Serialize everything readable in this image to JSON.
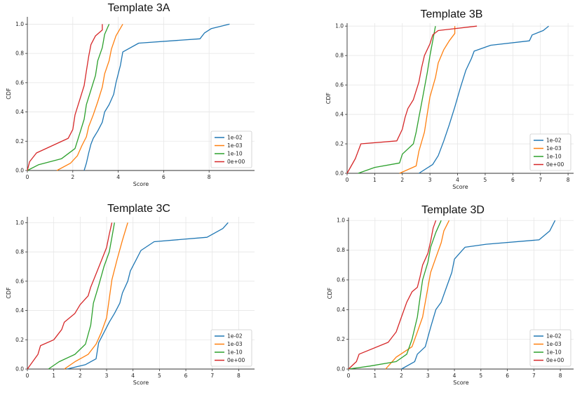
{
  "colors": {
    "s1e02": "#1f77b4",
    "s1e03": "#ff7f0e",
    "s1e10": "#2ca02c",
    "s0e00": "#d62728"
  },
  "chart_data": [
    {
      "type": "line",
      "title": "Template 3A",
      "xlabel": "Score",
      "ylabel": "CDF",
      "xlim": [
        0,
        10
      ],
      "ylim": [
        0,
        1.05
      ],
      "xticks": [
        0,
        2,
        4,
        6,
        8
      ],
      "yticks": [
        0.0,
        0.2,
        0.4,
        0.6,
        0.8,
        1.0
      ],
      "grid": true,
      "legend": "bottom-right",
      "series": [
        {
          "name": "1e-02",
          "color": "#1f77b4",
          "x": [
            2.5,
            2.6,
            2.7,
            2.8,
            2.9,
            3.1,
            3.3,
            3.4,
            3.6,
            3.8,
            3.9,
            4.1,
            4.2,
            4.9,
            7.6,
            7.8,
            8.1,
            8.9
          ],
          "y": [
            0.0,
            0.05,
            0.12,
            0.18,
            0.22,
            0.27,
            0.33,
            0.4,
            0.45,
            0.52,
            0.6,
            0.72,
            0.81,
            0.87,
            0.9,
            0.94,
            0.97,
            1.0
          ]
        },
        {
          "name": "1e-03",
          "color": "#ff7f0e",
          "x": [
            1.3,
            1.9,
            2.2,
            2.4,
            2.6,
            2.7,
            2.9,
            3.1,
            3.3,
            3.4,
            3.6,
            3.7,
            3.9,
            4.2
          ],
          "y": [
            0.0,
            0.05,
            0.1,
            0.17,
            0.23,
            0.3,
            0.38,
            0.47,
            0.57,
            0.66,
            0.75,
            0.83,
            0.92,
            1.0
          ]
        },
        {
          "name": "1e-10",
          "color": "#2ca02c",
          "x": [
            0.0,
            0.5,
            1.5,
            2.1,
            2.3,
            2.5,
            2.6,
            2.8,
            3.0,
            3.1,
            3.3,
            3.4,
            3.6
          ],
          "y": [
            0.0,
            0.04,
            0.08,
            0.15,
            0.25,
            0.35,
            0.45,
            0.55,
            0.65,
            0.75,
            0.84,
            0.93,
            1.0
          ]
        },
        {
          "name": "0e+00",
          "color": "#d62728",
          "x": [
            0.0,
            0.1,
            0.4,
            1.8,
            2.0,
            2.1,
            2.3,
            2.5,
            2.6,
            2.7,
            2.8,
            3.0,
            3.3,
            3.3
          ],
          "y": [
            0.0,
            0.06,
            0.12,
            0.22,
            0.28,
            0.38,
            0.48,
            0.58,
            0.68,
            0.78,
            0.86,
            0.92,
            0.96,
            1.0
          ]
        }
      ]
    },
    {
      "type": "line",
      "title": "Template 3B",
      "xlabel": "Score",
      "ylabel": "CDF",
      "xlim": [
        0,
        8.2
      ],
      "ylim": [
        0,
        1.02
      ],
      "xticks": [
        0,
        1,
        2,
        3,
        4,
        5,
        6,
        7,
        8
      ],
      "yticks": [
        0.0,
        0.2,
        0.4,
        0.6,
        0.8,
        1.0
      ],
      "grid": true,
      "legend": "bottom-right",
      "series": [
        {
          "name": "1e-02",
          "color": "#1f77b4",
          "x": [
            2.6,
            3.1,
            3.3,
            3.5,
            3.7,
            3.9,
            4.1,
            4.3,
            4.5,
            4.6,
            5.2,
            6.6,
            6.7,
            7.1,
            7.3
          ],
          "y": [
            0.0,
            0.06,
            0.12,
            0.22,
            0.33,
            0.45,
            0.58,
            0.7,
            0.78,
            0.83,
            0.87,
            0.9,
            0.94,
            0.97,
            1.0
          ]
        },
        {
          "name": "1e-03",
          "color": "#ff7f0e",
          "x": [
            1.9,
            2.5,
            2.6,
            2.8,
            2.9,
            3.0,
            3.2,
            3.3,
            3.5,
            3.7,
            3.9,
            3.9
          ],
          "y": [
            0.0,
            0.05,
            0.15,
            0.28,
            0.4,
            0.52,
            0.65,
            0.75,
            0.84,
            0.9,
            0.95,
            1.0
          ]
        },
        {
          "name": "1e-10",
          "color": "#2ca02c",
          "x": [
            0.4,
            1.0,
            1.9,
            2.0,
            2.4,
            2.5,
            2.6,
            2.7,
            2.8,
            2.9,
            3.0,
            3.1,
            3.2
          ],
          "y": [
            0.0,
            0.04,
            0.07,
            0.13,
            0.2,
            0.28,
            0.38,
            0.48,
            0.58,
            0.68,
            0.8,
            0.9,
            1.0
          ]
        },
        {
          "name": "0e+00",
          "color": "#d62728",
          "x": [
            0.0,
            0.3,
            0.5,
            1.8,
            2.0,
            2.1,
            2.2,
            2.4,
            2.6,
            2.7,
            2.8,
            3.0,
            3.1,
            3.3,
            4.7
          ],
          "y": [
            0.0,
            0.1,
            0.2,
            0.22,
            0.3,
            0.38,
            0.44,
            0.5,
            0.62,
            0.72,
            0.8,
            0.88,
            0.94,
            0.97,
            1.0
          ]
        }
      ]
    },
    {
      "type": "line",
      "title": "Template 3C",
      "xlabel": "Score",
      "ylabel": "CDF",
      "xlim": [
        0,
        8.6
      ],
      "ylim": [
        0,
        1.04
      ],
      "xticks": [
        0,
        1,
        2,
        3,
        4,
        5,
        6,
        7,
        8
      ],
      "yticks": [
        0.0,
        0.2,
        0.4,
        0.6,
        0.8,
        1.0
      ],
      "grid": true,
      "legend": "bottom-right",
      "series": [
        {
          "name": "1e-02",
          "color": "#1f77b4",
          "x": [
            1.5,
            2.2,
            2.6,
            2.7,
            2.9,
            3.1,
            3.3,
            3.5,
            3.6,
            3.8,
            3.9,
            4.1,
            4.3,
            4.8,
            6.8,
            7.4,
            7.6
          ],
          "y": [
            0.0,
            0.03,
            0.07,
            0.18,
            0.25,
            0.32,
            0.38,
            0.45,
            0.52,
            0.6,
            0.67,
            0.74,
            0.81,
            0.87,
            0.9,
            0.96,
            1.0
          ]
        },
        {
          "name": "1e-03",
          "color": "#ff7f0e",
          "x": [
            1.4,
            1.8,
            2.3,
            2.6,
            2.8,
            3.0,
            3.1,
            3.2,
            3.4,
            3.6,
            3.8
          ],
          "y": [
            0.0,
            0.05,
            0.1,
            0.17,
            0.25,
            0.35,
            0.48,
            0.61,
            0.75,
            0.88,
            1.0
          ]
        },
        {
          "name": "1e-10",
          "color": "#2ca02c",
          "x": [
            0.8,
            1.2,
            1.8,
            2.2,
            2.4,
            2.5,
            2.7,
            2.9,
            3.1,
            3.2,
            3.3
          ],
          "y": [
            0.0,
            0.05,
            0.1,
            0.17,
            0.3,
            0.45,
            0.57,
            0.7,
            0.8,
            0.9,
            1.0
          ]
        },
        {
          "name": "0e+00",
          "color": "#d62728",
          "x": [
            0.0,
            0.2,
            0.4,
            0.5,
            1.0,
            1.3,
            1.4,
            1.8,
            2.0,
            2.3,
            2.4,
            2.6,
            2.8,
            3.0,
            3.1,
            3.2
          ],
          "y": [
            0.0,
            0.05,
            0.1,
            0.16,
            0.2,
            0.27,
            0.32,
            0.38,
            0.44,
            0.5,
            0.56,
            0.65,
            0.74,
            0.83,
            0.92,
            1.0
          ]
        }
      ]
    },
    {
      "type": "line",
      "title": "Template 3D",
      "xlabel": "Score",
      "ylabel": "CDF",
      "xlim": [
        0,
        8.5
      ],
      "ylim": [
        0,
        1.02
      ],
      "xticks": [
        0,
        1,
        2,
        3,
        4,
        5,
        6,
        7,
        8
      ],
      "yticks": [
        0.0,
        0.2,
        0.4,
        0.6,
        0.8,
        1.0
      ],
      "grid": true,
      "legend": "bottom-right",
      "series": [
        {
          "name": "1e-02",
          "color": "#1f77b4",
          "x": [
            2.0,
            2.5,
            2.6,
            2.9,
            3.1,
            3.3,
            3.5,
            3.7,
            3.9,
            4.0,
            4.3,
            4.4,
            5.2,
            7.2,
            7.6,
            7.8
          ],
          "y": [
            0.0,
            0.05,
            0.1,
            0.15,
            0.28,
            0.4,
            0.45,
            0.55,
            0.65,
            0.74,
            0.8,
            0.82,
            0.84,
            0.87,
            0.93,
            1.0
          ]
        },
        {
          "name": "1e-03",
          "color": "#ff7f0e",
          "x": [
            1.4,
            1.8,
            2.4,
            2.6,
            2.8,
            2.9,
            3.0,
            3.1,
            3.3,
            3.5,
            3.6,
            3.8
          ],
          "y": [
            0.0,
            0.08,
            0.15,
            0.25,
            0.35,
            0.45,
            0.55,
            0.65,
            0.75,
            0.85,
            0.93,
            1.0
          ]
        },
        {
          "name": "1e-10",
          "color": "#2ca02c",
          "x": [
            0.0,
            0.8,
            1.8,
            2.2,
            2.4,
            2.6,
            2.7,
            2.8,
            3.0,
            3.1,
            3.3,
            3.5
          ],
          "y": [
            0.0,
            0.02,
            0.05,
            0.1,
            0.2,
            0.35,
            0.48,
            0.6,
            0.72,
            0.82,
            0.92,
            1.0
          ]
        },
        {
          "name": "0e+00",
          "color": "#d62728",
          "x": [
            0.0,
            0.3,
            0.4,
            1.5,
            1.8,
            2.0,
            2.2,
            2.4,
            2.6,
            2.7,
            2.8,
            3.0,
            3.1,
            3.2,
            3.3
          ],
          "y": [
            0.0,
            0.05,
            0.1,
            0.18,
            0.25,
            0.35,
            0.45,
            0.52,
            0.55,
            0.62,
            0.7,
            0.78,
            0.86,
            0.95,
            1.0
          ]
        }
      ]
    }
  ]
}
